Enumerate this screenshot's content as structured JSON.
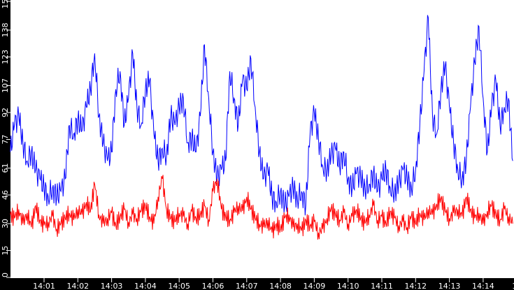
{
  "chart_data": {
    "type": "line",
    "title": "",
    "xlabel": "",
    "ylabel": "",
    "ylim": [
      0,
      154
    ],
    "y_ticks": [
      "0",
      "15",
      "30",
      "46",
      "61",
      "77",
      "92",
      "107",
      "123",
      "138",
      "154"
    ],
    "x_ticks": [
      "14:01",
      "14:02",
      "14:03",
      "14:04",
      "14:05",
      "14:06",
      "14:07",
      "14:08",
      "14:09",
      "14:10",
      "14:11",
      "14:12",
      "14:13",
      "14:14",
      "14"
    ],
    "x_range_minutes_from_1400": [
      0,
      14.92
    ],
    "sample_interval_seconds": 7.5,
    "grid": false,
    "legend": "none",
    "series": [
      {
        "color": "#0000ff",
        "values": [
          70,
          85,
          90,
          75,
          65,
          70,
          60,
          55,
          50,
          45,
          50,
          45,
          48,
          55,
          85,
          80,
          88,
          82,
          95,
          105,
          125,
          90,
          75,
          65,
          70,
          105,
          115,
          85,
          100,
          125,
          95,
          85,
          105,
          110,
          80,
          65,
          72,
          68,
          90,
          85,
          95,
          100,
          75,
          78,
          70,
          90,
          130,
          100,
          70,
          55,
          60,
          65,
          115,
          100,
          85,
          110,
          105,
          122,
          95,
          70,
          55,
          60,
          45,
          42,
          48,
          40,
          45,
          50,
          44,
          48,
          40,
          80,
          92,
          78,
          62,
          60,
          68,
          72,
          62,
          70,
          55,
          50,
          58,
          55,
          50,
          52,
          58,
          48,
          55,
          60,
          50,
          48,
          52,
          60,
          55,
          50,
          60,
          85,
          115,
          145,
          90,
          80,
          105,
          118,
          95,
          75,
          60,
          55,
          65,
          95,
          120,
          140,
          100,
          70,
          95,
          110,
          85,
          95,
          100,
          65
        ]
      },
      {
        "color": "#ff0000",
        "values": [
          35,
          33,
          38,
          30,
          36,
          28,
          40,
          32,
          29,
          31,
          34,
          27,
          30,
          33,
          36,
          32,
          38,
          35,
          42,
          37,
          52,
          35,
          30,
          33,
          36,
          29,
          34,
          38,
          31,
          35,
          33,
          37,
          40,
          34,
          30,
          45,
          55,
          38,
          33,
          31,
          36,
          34,
          30,
          37,
          33,
          35,
          40,
          32,
          48,
          55,
          38,
          34,
          32,
          36,
          40,
          37,
          45,
          38,
          33,
          30,
          28,
          32,
          25,
          30,
          27,
          33,
          35,
          28,
          30,
          26,
          32,
          29,
          31,
          25,
          27,
          33,
          38,
          35,
          32,
          36,
          30,
          34,
          38,
          33,
          30,
          35,
          40,
          32,
          34,
          30,
          37,
          33,
          29,
          31,
          28,
          34,
          30,
          36,
          32,
          38,
          35,
          41,
          44,
          37,
          33,
          36,
          38,
          34,
          45,
          38,
          33,
          36,
          30,
          37,
          40,
          35,
          32,
          38,
          34,
          30
        ]
      }
    ]
  }
}
